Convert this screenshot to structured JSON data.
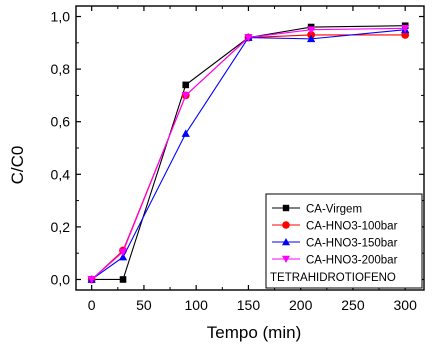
{
  "chart_data": {
    "type": "line",
    "xlabel": "Tempo (min)",
    "ylabel": "C/C0",
    "xlim": [
      -15,
      318
    ],
    "ylim": [
      -0.04,
      1.04
    ],
    "xticks": [
      0,
      50,
      100,
      150,
      200,
      250,
      300
    ],
    "yticks": [
      0.0,
      0.2,
      0.4,
      0.6,
      0.8,
      1.0
    ],
    "xtick_labels": [
      "0",
      "50",
      "100",
      "150",
      "200",
      "250",
      "300"
    ],
    "ytick_labels": [
      "0,0",
      "0,2",
      "0,4",
      "0,6",
      "0,8",
      "1,0"
    ],
    "grid": false,
    "legend_position": "bottom-right",
    "legend_title": "TETRAHIDROTIOFENO",
    "series": [
      {
        "name": "CA-Virgem",
        "color": "#000000",
        "marker": "square",
        "x": [
          0,
          30,
          90,
          150,
          210,
          300
        ],
        "y": [
          0.0,
          0.0,
          0.74,
          0.92,
          0.96,
          0.965
        ]
      },
      {
        "name": "CA-HNO3-100bar",
        "color": "#ff0000",
        "marker": "circle",
        "x": [
          0,
          30,
          90,
          150,
          210,
          300
        ],
        "y": [
          0.0,
          0.11,
          0.7,
          0.92,
          0.93,
          0.93
        ]
      },
      {
        "name": "CA-HNO3-150bar",
        "color": "#0000ff",
        "marker": "triangle-up",
        "x": [
          0,
          30,
          90,
          150,
          210,
          300
        ],
        "y": [
          0.0,
          0.085,
          0.555,
          0.92,
          0.915,
          0.95
        ]
      },
      {
        "name": "CA-HNO3-200bar",
        "color": "#ff00ff",
        "marker": "triangle-down",
        "x": [
          0,
          30,
          90,
          150,
          210,
          300
        ],
        "y": [
          0.0,
          0.105,
          0.7,
          0.92,
          0.95,
          0.955
        ]
      }
    ]
  }
}
